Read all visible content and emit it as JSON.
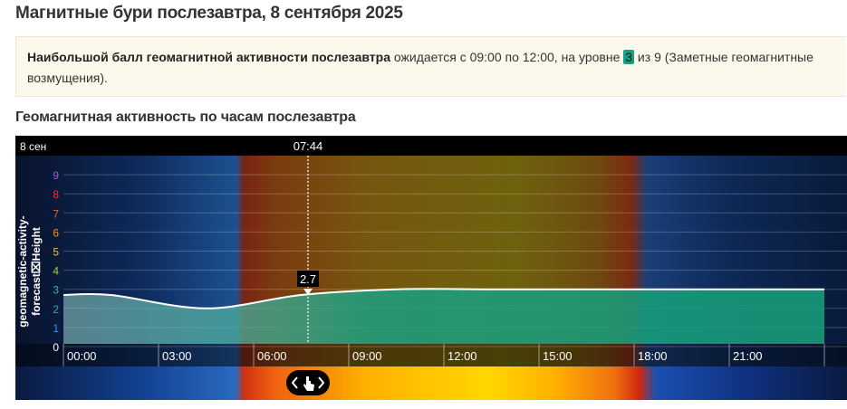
{
  "header": {
    "title": "Магнитные бури послезавтра, 8 сентября 2025"
  },
  "info": {
    "bold": "Наибольшой балл геомагнитной активности послезавтра",
    "text1": " ожидается с 09:00 по 12:00, на уровне ",
    "level": "3",
    "text2": " из 9 (Заметные геомагнитные возмущения)."
  },
  "subtitle": "Геомагнитная активность по часам послезавтра",
  "chart_data": {
    "type": "area",
    "date_label": "8 сен",
    "y_label": [
      "geomagnetic-activity-",
      "forecast⌧Height"
    ],
    "cursor": {
      "label": "07:44",
      "value": 2.7
    },
    "x": [
      0,
      1.5,
      4.5,
      7.5,
      10.5,
      13.5,
      16.5,
      19.5,
      22.5,
      24
    ],
    "values": [
      2.7,
      2.7,
      2.0,
      2.7,
      3,
      3,
      3,
      3,
      3,
      3
    ],
    "color": "#ffffff",
    "xlim": [
      0,
      24
    ],
    "xticks": [
      {
        "value": 0,
        "label": "00:00"
      },
      {
        "value": 3,
        "label": "03:00"
      },
      {
        "value": 6,
        "label": "06:00"
      },
      {
        "value": 9,
        "label": "09:00"
      },
      {
        "value": 12,
        "label": "12:00"
      },
      {
        "value": 15,
        "label": "15:00"
      },
      {
        "value": 18,
        "label": "18:00"
      },
      {
        "value": 21,
        "label": "21:00"
      },
      {
        "value": 24,
        "label": ""
      }
    ],
    "ylim": [
      0,
      10
    ],
    "yticks": [
      0,
      1,
      2,
      3,
      4,
      5,
      6,
      7,
      8,
      9
    ],
    "ytick_colors": [
      "#ffffff",
      "#3a8dff",
      "#22b0a0",
      "#30c080",
      "#a0d040",
      "#f0c020",
      "#ff9020",
      "#ff6030",
      "#ff3030",
      "#b050e0"
    ],
    "grid": true
  }
}
